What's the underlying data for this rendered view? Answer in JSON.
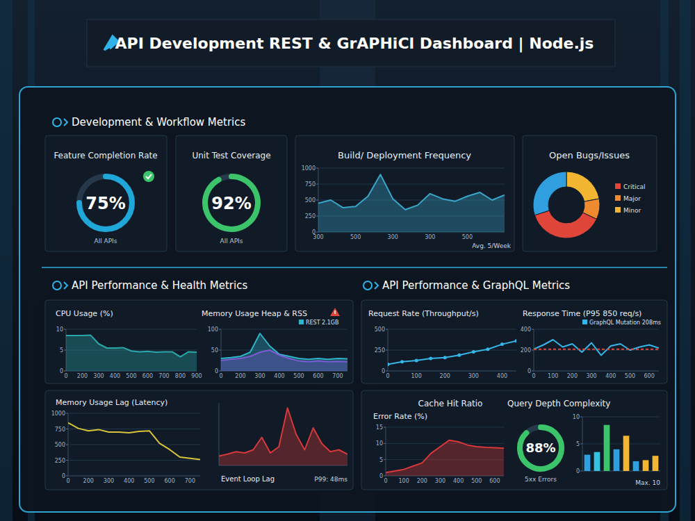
{
  "header": {
    "title": "API Development REST & GrAPHiCl Dashboard | Node.js"
  },
  "sections": [
    "Development & Workflow Metrics",
    "API Performance & Health Metrics",
    "API Performance & GraphQL Metrics"
  ],
  "chart_data": [
    {
      "type": "gauge",
      "title": "Feature Completion Rate",
      "subtitle": "All APIs",
      "values": [
        75
      ],
      "value_labels": [
        "75%"
      ],
      "ylim": [
        0,
        100
      ],
      "color": "#1ea7d8",
      "data_labels": true
    },
    {
      "type": "gauge",
      "title": "Unit Test Coverage",
      "subtitle": "All APIs",
      "values": [
        92
      ],
      "value_labels": [
        "92%"
      ],
      "ylim": [
        0,
        100
      ],
      "color": "#3cc46a",
      "data_labels": true
    },
    {
      "type": "area",
      "title": "Build/ Deployment Frequency",
      "annotation": "Avg. 5/Week",
      "categories": [
        "300",
        null,
        null,
        "500",
        null,
        null,
        "300",
        null,
        null,
        "300",
        null,
        null,
        "500",
        null,
        null,
        null
      ],
      "values": [
        450,
        500,
        380,
        400,
        560,
        900,
        520,
        350,
        420,
        600,
        520,
        480,
        560,
        620,
        500,
        580
      ],
      "ylim": [
        0,
        1000
      ],
      "yticks": [
        0,
        250,
        500,
        750,
        1000
      ],
      "color": "#3aa6c9",
      "grid": true
    },
    {
      "type": "donut",
      "title": "Open Bugs/Issues",
      "categories": [
        "Minor",
        "Major",
        "Critical",
        null
      ],
      "values": [
        22,
        10,
        38,
        30
      ],
      "colors": [
        "#f2b632",
        "#ef8a2e",
        "#e0453a",
        "#2f9fe0"
      ],
      "legend": "right"
    },
    {
      "type": "area",
      "title": "CPU Usage (%)",
      "categories": [
        "0",
        null,
        "200",
        null,
        "300",
        null,
        "400",
        null,
        "500",
        null,
        "600",
        null,
        "700",
        null,
        "800",
        null,
        "900"
      ],
      "values": [
        8.5,
        8.5,
        8.5,
        8.6,
        6.5,
        5.5,
        5.5,
        5.6,
        4.8,
        4.6,
        4.7,
        4.5,
        4.6,
        4.6,
        3.4,
        4.6,
        4.5
      ],
      "ylim": [
        0,
        10
      ],
      "yticks": [
        0,
        5,
        10
      ],
      "color": "#2aa7a8",
      "grid": true
    },
    {
      "type": "area",
      "title": "Memory Usage Heap & RSS",
      "categories": [
        "0",
        null,
        "200",
        null,
        "300",
        null,
        "400",
        null,
        "500",
        null,
        "600",
        null,
        "700",
        null
      ],
      "series": [
        {
          "name": "REST 2.1GB",
          "color": "#2fb3c8",
          "values": [
            30,
            32,
            35,
            45,
            90,
            60,
            40,
            35,
            30,
            28,
            30,
            28,
            30,
            29
          ]
        },
        {
          "color": "#7b5cd6",
          "values": [
            25,
            28,
            30,
            35,
            45,
            50,
            38,
            30,
            24,
            22,
            24,
            22,
            23,
            22
          ]
        }
      ],
      "ylim": [
        0,
        100
      ],
      "yticks": [
        0,
        50,
        100
      ],
      "legend": "upper right",
      "grid": true
    },
    {
      "type": "line",
      "title": "Request Rate (Throughput/s)",
      "categories": [
        "0",
        null,
        "100",
        null,
        "200",
        null,
        "300",
        null,
        "400",
        null
      ],
      "values": [
        80,
        110,
        125,
        150,
        160,
        190,
        230,
        260,
        320,
        360
      ],
      "ylim": [
        0,
        500
      ],
      "yticks": [
        0,
        250,
        500
      ],
      "color": "#35b6e8",
      "marker": "circle",
      "grid": true
    },
    {
      "type": "line",
      "title": "Response Time (P95 850 req/s)",
      "categories": [
        "0",
        null,
        "100",
        null,
        "200",
        null,
        "300",
        null,
        "400",
        null,
        "500",
        null,
        "600",
        null
      ],
      "series": [
        {
          "name": "GraphQL Mutation 208ms",
          "color": "#35b6e8",
          "values": [
            210,
            250,
            300,
            230,
            260,
            180,
            270,
            150,
            240,
            260,
            200,
            230,
            250,
            220
          ]
        },
        {
          "color": "#e0453a",
          "line_style": "dashed",
          "values": [
            208,
            208,
            208,
            208,
            208,
            208,
            208,
            208,
            208,
            208,
            208,
            208,
            208,
            208
          ]
        }
      ],
      "ylim": [
        0,
        400
      ],
      "yticks": [
        0,
        200,
        400
      ],
      "legend": "upper right",
      "grid": true
    },
    {
      "type": "line",
      "title": "Memory Usage Lag (Latency)",
      "categories": [
        "0",
        null,
        "200",
        null,
        "300",
        null,
        "400",
        null,
        "500",
        null,
        "600",
        null,
        "700",
        null
      ],
      "values": [
        850,
        760,
        720,
        740,
        700,
        700,
        690,
        710,
        720,
        520,
        420,
        300,
        280,
        260
      ],
      "ylim": [
        0,
        1000
      ],
      "yticks": [
        0,
        250,
        500,
        750,
        1000
      ],
      "color": "#d9c23a",
      "grid": true
    },
    {
      "type": "area",
      "title": "Event Loop Lag",
      "annotation": "P99: 48ms",
      "categories": [
        null,
        null,
        null,
        null,
        null,
        null,
        null,
        null,
        null,
        null,
        null,
        null,
        null,
        null,
        null,
        null
      ],
      "values": [
        15,
        18,
        22,
        20,
        25,
        45,
        20,
        30,
        92,
        50,
        25,
        60,
        35,
        22,
        25,
        18
      ],
      "ylim": [
        0,
        100
      ],
      "tick_labels": false,
      "color": "#d8383a"
    },
    {
      "type": "area",
      "title": "Error Rate (%)",
      "categories": [
        "0",
        null,
        "100",
        null,
        "200",
        null,
        "300",
        null,
        "400",
        null,
        "500",
        null,
        "600",
        null
      ],
      "values": [
        1,
        1.5,
        2,
        3,
        4,
        7,
        9,
        11,
        10.5,
        9.5,
        9,
        8.8,
        8.7,
        8.5
      ],
      "ylim": [
        0,
        15
      ],
      "yticks": [
        0,
        5,
        10,
        15
      ],
      "color": "#d8383a",
      "grid": true
    },
    {
      "type": "gauge",
      "title": "Cache Hit Ratio",
      "subtitle": "5xx Errors",
      "values": [
        88
      ],
      "value_labels": [
        "88%"
      ],
      "ylim": [
        0,
        100
      ],
      "color": "#3cc46a",
      "data_labels": true
    },
    {
      "type": "bar",
      "title": "Query Depth Complexity",
      "xlabel": "Max. 10",
      "categories": [
        null,
        null,
        null,
        null,
        null,
        null,
        null,
        null
      ],
      "values": [
        3,
        3.5,
        8.5,
        4,
        6.5,
        1.8,
        2,
        2.8
      ],
      "colors": [
        "#2f9fe0",
        "#35c2e0",
        "#3cc46a",
        "#2f9fe0",
        "#f2b632",
        "#2f9fe0",
        "#f2b632",
        "#f2b632"
      ],
      "ylim": [
        0,
        10
      ],
      "yticks": [
        0,
        5,
        10
      ],
      "tick_labels": "y",
      "grid": true
    }
  ]
}
